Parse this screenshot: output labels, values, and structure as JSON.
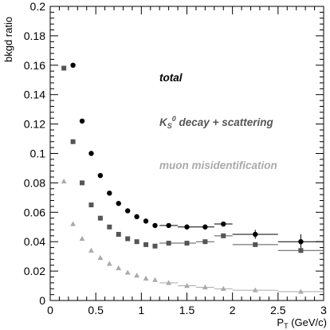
{
  "chart_data": {
    "type": "scatter",
    "title": "",
    "xlabel": "P<sub>T</sub> (GeV/c)",
    "xlabel_parts": {
      "main": "P",
      "sub": "T",
      "rest": " (GeV/c)"
    },
    "ylabel": "bkgd ratio",
    "xlim": [
      0,
      3
    ],
    "ylim": [
      0,
      0.2
    ],
    "xticks": [
      0,
      0.5,
      1,
      1.5,
      2,
      2.5,
      3
    ],
    "xtick_labels": [
      "0",
      "0.5",
      "1",
      "1.5",
      "2",
      "2.5",
      "3"
    ],
    "yticks": [
      0,
      0.02,
      0.04,
      0.06,
      0.08,
      0.1,
      0.12,
      0.14,
      0.16,
      0.18,
      0.2
    ],
    "ytick_labels": [
      "0",
      "0.02",
      "0.04",
      "0.06",
      "0.08",
      "0.1",
      "0.12",
      "0.14",
      "0.16",
      "0.18",
      "0.2"
    ],
    "grid": false,
    "series": [
      {
        "name": "total",
        "marker": "circle",
        "color": "#000000",
        "x": [
          0.25,
          0.35,
          0.45,
          0.55,
          0.65,
          0.75,
          0.85,
          0.95,
          1.05,
          1.15,
          1.3,
          1.5,
          1.7,
          1.9,
          2.25,
          2.75
        ],
        "y": [
          0.16,
          0.122,
          0.1,
          0.085,
          0.073,
          0.066,
          0.061,
          0.057,
          0.054,
          0.051,
          0.051,
          0.05,
          0.05,
          0.052,
          0.045,
          0.04
        ],
        "xerr": [
          0,
          0,
          0,
          0,
          0,
          0,
          0,
          0,
          0,
          0,
          0.1,
          0.1,
          0.1,
          0.1,
          0.25,
          0.25
        ],
        "yerr": [
          0,
          0,
          0,
          0,
          0,
          0,
          0,
          0,
          0,
          0,
          0,
          0,
          0,
          0,
          0.003,
          0.005
        ]
      },
      {
        "name": "K_S^0 decay + scattering",
        "name_parts": {
          "k": "K",
          "sub": "S",
          "sup": "0",
          "rest": "  decay +    scattering"
        },
        "marker": "square",
        "color": "#555555",
        "x": [
          0.15,
          0.25,
          0.35,
          0.45,
          0.55,
          0.65,
          0.75,
          0.85,
          0.95,
          1.05,
          1.15,
          1.3,
          1.5,
          1.7,
          1.9,
          2.25,
          2.75
        ],
        "y": [
          0.158,
          0.108,
          0.08,
          0.065,
          0.056,
          0.05,
          0.045,
          0.042,
          0.04,
          0.038,
          0.037,
          0.039,
          0.039,
          0.04,
          0.044,
          0.038,
          0.034
        ],
        "xerr": [
          0,
          0,
          0,
          0,
          0,
          0,
          0,
          0,
          0,
          0,
          0,
          0.1,
          0.1,
          0.1,
          0.1,
          0.25,
          0.25
        ],
        "yerr": [
          0,
          0,
          0,
          0,
          0,
          0,
          0,
          0,
          0,
          0,
          0,
          0,
          0,
          0,
          0,
          0,
          0
        ]
      },
      {
        "name": "muon  misidentification",
        "marker": "triangle",
        "color": "#aaaaaa",
        "x": [
          0.15,
          0.25,
          0.35,
          0.45,
          0.55,
          0.65,
          0.75,
          0.85,
          0.95,
          1.05,
          1.15,
          1.3,
          1.5,
          1.7,
          1.9,
          2.25,
          2.75
        ],
        "y": [
          0.081,
          0.052,
          0.042,
          0.034,
          0.029,
          0.025,
          0.022,
          0.019,
          0.017,
          0.015,
          0.014,
          0.012,
          0.01,
          0.009,
          0.008,
          0.007,
          0.006
        ],
        "xerr": [
          0,
          0,
          0,
          0,
          0,
          0,
          0,
          0,
          0,
          0,
          0,
          0.1,
          0.1,
          0.1,
          0.1,
          0.25,
          0.25
        ],
        "yerr": [
          0,
          0,
          0,
          0,
          0,
          0,
          0,
          0,
          0,
          0,
          0,
          0,
          0,
          0,
          0,
          0,
          0
        ]
      }
    ],
    "annotations": [
      {
        "key": "total",
        "text": "total",
        "color": "#000000"
      },
      {
        "key": "ks",
        "text": "K_S^0  decay +    scattering",
        "color": "#555555"
      },
      {
        "key": "muon",
        "text": "muon  misidentification",
        "color": "#aaaaaa"
      }
    ]
  }
}
